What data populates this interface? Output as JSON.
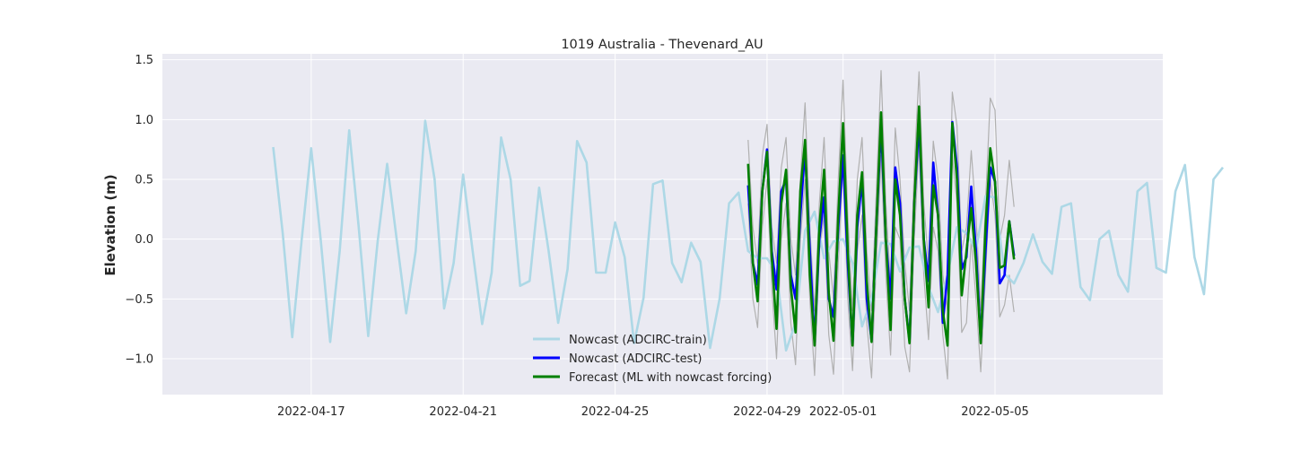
{
  "chart_data": {
    "type": "line",
    "title": "1019 Australia - Thevenard_AU",
    "xlabel": "",
    "ylabel": "Elevation (m)",
    "xlim": [
      "2022-04-13T02:00",
      "2022-05-09T10:00"
    ],
    "ylim": [
      -1.3,
      1.55
    ],
    "x_ticks": [
      "2022-04-17",
      "2022-04-21",
      "2022-04-25",
      "2022-04-29",
      "2022-05-01",
      "2022-05-05"
    ],
    "y_ticks": [
      -1.0,
      -0.5,
      0.0,
      0.5,
      1.0,
      1.5
    ],
    "y_tick_labels": [
      "−1.0",
      "−0.5",
      "0.0",
      "0.5",
      "1.0",
      "1.5"
    ],
    "grid": true,
    "legend": "bottom-center",
    "colors": {
      "background": "#eaeaf2",
      "grid": "#ffffff",
      "train": "#add8e6",
      "test": "#0000ff",
      "forecast": "#008000",
      "envelope": "#b0b0b0"
    },
    "train": {
      "name": "Nowcast (ADCIRC-train)",
      "start": "2022-04-16T00:00",
      "step_hours": 6,
      "values": [
        0.77,
        0.05,
        -0.82,
        0.0,
        0.76,
        0.0,
        -0.86,
        -0.1,
        0.91,
        0.1,
        -0.81,
        -0.02,
        0.63,
        0.0,
        -0.62,
        -0.1,
        0.99,
        0.5,
        -0.58,
        -0.2,
        0.54,
        -0.1,
        -0.71,
        -0.28,
        0.85,
        0.5,
        -0.39,
        -0.35,
        0.43,
        -0.1,
        -0.7,
        -0.25,
        0.82,
        0.64,
        -0.28,
        -0.28,
        0.14,
        -0.15,
        -0.87,
        -0.49,
        0.46,
        0.49,
        -0.2,
        -0.36,
        -0.03,
        -0.19,
        -0.91,
        -0.5,
        0.3,
        0.39,
        -0.1,
        -0.16,
        -0.16,
        -0.28,
        -0.93,
        -0.7,
        0.07,
        0.23,
        -0.16,
        -0.02,
        0.0,
        -0.2,
        -0.73,
        -0.5,
        -0.03,
        -0.04,
        -0.27,
        -0.07,
        -0.06,
        -0.4,
        -0.61,
        -0.3,
        0.1,
        0.05,
        -0.09,
        0.36,
        0.35,
        -0.29,
        -0.37,
        -0.2,
        0.04,
        -0.19,
        -0.29,
        0.27,
        0.3,
        -0.4,
        -0.51,
        0.0,
        0.07,
        -0.3,
        -0.44,
        0.4,
        0.47,
        -0.24,
        -0.28,
        0.4,
        0.62,
        -0.15,
        -0.46,
        0.5,
        0.6
      ]
    },
    "test": {
      "name": "Nowcast (ADCIRC-test)",
      "start": "2022-04-28T12:00",
      "step_hours": 3,
      "values": [
        0.45,
        -0.2,
        -0.38,
        0.4,
        0.75,
        -0.1,
        -0.42,
        0.4,
        0.5,
        -0.3,
        -0.5,
        0.2,
        0.75,
        -0.1,
        -0.86,
        0.0,
        0.35,
        -0.5,
        -0.65,
        0.1,
        0.7,
        -0.2,
        -0.88,
        0.1,
        0.5,
        -0.5,
        -0.85,
        0.1,
        0.95,
        0.0,
        -0.5,
        0.6,
        0.3,
        -0.5,
        -0.85,
        0.3,
        0.98,
        0.0,
        -0.35,
        0.64,
        0.2,
        -0.7,
        -0.3,
        0.98,
        0.6,
        -0.25,
        -0.15,
        0.44,
        -0.1,
        -0.85,
        -0.1,
        0.6,
        0.48,
        -0.37,
        -0.3,
        0.15,
        -0.14
      ]
    },
    "forecast": {
      "name": "Forecast (ML with nowcast forcing)",
      "start": "2022-04-28T12:00",
      "step_hours": 3,
      "values": [
        0.63,
        -0.2,
        -0.52,
        0.4,
        0.73,
        -0.15,
        -0.75,
        0.3,
        0.58,
        -0.4,
        -0.78,
        0.4,
        0.83,
        -0.3,
        -0.89,
        0.1,
        0.58,
        -0.45,
        -0.85,
        0.2,
        0.97,
        -0.1,
        -0.89,
        0.2,
        0.56,
        -0.35,
        -0.86,
        0.1,
        1.06,
        0.0,
        -0.76,
        0.5,
        0.2,
        -0.5,
        -0.87,
        0.3,
        1.11,
        0.0,
        -0.57,
        0.45,
        0.2,
        -0.6,
        -0.89,
        0.97,
        0.5,
        -0.47,
        -0.1,
        0.26,
        -0.2,
        -0.87,
        0.1,
        0.76,
        0.48,
        -0.24,
        -0.22,
        0.15,
        -0.17
      ]
    },
    "upper_envelope": {
      "start": "2022-04-28T12:00",
      "step_hours": 3,
      "values": [
        0.83,
        0.1,
        -0.2,
        0.7,
        0.96,
        0.1,
        -0.2,
        0.6,
        0.85,
        0.0,
        -0.3,
        0.5,
        1.14,
        0.1,
        -0.6,
        0.3,
        0.85,
        -0.1,
        -0.5,
        0.5,
        1.33,
        0.2,
        -0.6,
        0.5,
        0.85,
        -0.1,
        -0.6,
        0.4,
        1.41,
        0.3,
        -0.4,
        0.93,
        0.5,
        -0.2,
        -0.6,
        0.6,
        1.4,
        0.3,
        -0.2,
        0.82,
        0.5,
        -0.3,
        -0.6,
        1.23,
        0.95,
        -0.1,
        0.1,
        0.74,
        0.2,
        -0.6,
        0.3,
        1.18,
        1.08,
        0.0,
        0.2,
        0.66,
        0.27
      ]
    },
    "lower_envelope": {
      "start": "2022-04-28T12:00",
      "step_hours": 3,
      "values": [
        0.3,
        -0.5,
        -0.74,
        0.1,
        0.5,
        -0.4,
        -1.0,
        0.0,
        0.3,
        -0.7,
        -1.05,
        0.0,
        0.5,
        -0.5,
        -1.14,
        -0.1,
        0.2,
        -0.8,
        -1.13,
        -0.2,
        0.6,
        -0.5,
        -1.1,
        -0.1,
        0.2,
        -0.7,
        -1.16,
        -0.2,
        0.7,
        -0.3,
        -0.97,
        0.1,
        0.0,
        -0.9,
        -1.11,
        0.0,
        0.8,
        -0.3,
        -0.84,
        0.1,
        -0.1,
        -0.8,
        -1.17,
        0.7,
        0.3,
        -0.78,
        -0.7,
        0.0,
        -0.5,
        -1.11,
        -0.3,
        0.5,
        0.2,
        -0.65,
        -0.55,
        -0.3,
        -0.61
      ]
    }
  }
}
